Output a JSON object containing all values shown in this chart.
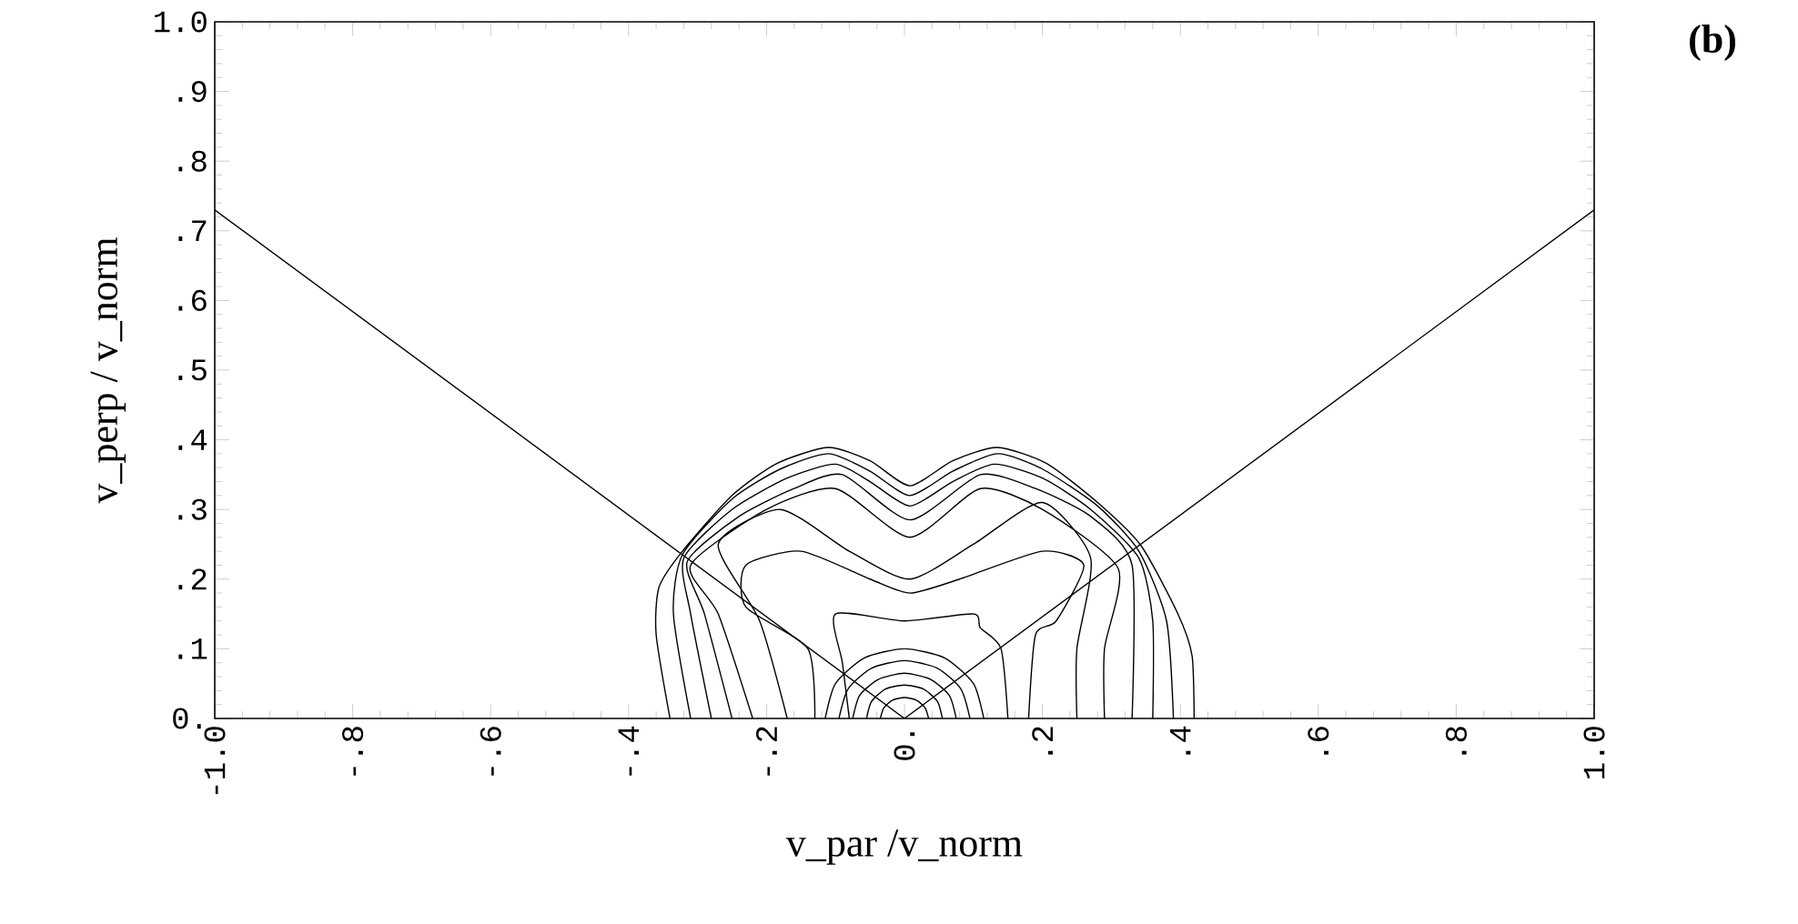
{
  "chart_data": {
    "type": "line",
    "xlabel": "v_par /v_norm",
    "ylabel": "v_perp / v_norm",
    "annotations": [
      "(b)"
    ],
    "xlim": [
      -1,
      1
    ],
    "ylim": [
      0,
      1
    ],
    "xticks": [
      {
        "value": -1,
        "label": "-1.0"
      },
      {
        "value": -0.8,
        "label": "-.8"
      },
      {
        "value": -0.6,
        "label": "-.6"
      },
      {
        "value": -0.4,
        "label": "-.4"
      },
      {
        "value": -0.2,
        "label": "-.2"
      },
      {
        "value": 0,
        "label": "0."
      },
      {
        "value": 0.2,
        "label": ".2"
      },
      {
        "value": 0.4,
        "label": ".4"
      },
      {
        "value": 0.6,
        "label": ".6"
      },
      {
        "value": 0.8,
        "label": ".8"
      },
      {
        "value": 1,
        "label": "1.0"
      }
    ],
    "yticks": [
      {
        "value": 0,
        "label": "0."
      },
      {
        "value": 0.1,
        "label": ".1"
      },
      {
        "value": 0.2,
        "label": ".2"
      },
      {
        "value": 0.3,
        "label": ".3"
      },
      {
        "value": 0.4,
        "label": ".4"
      },
      {
        "value": 0.5,
        "label": ".5"
      },
      {
        "value": 0.6,
        "label": ".6"
      },
      {
        "value": 0.7,
        "label": ".7"
      },
      {
        "value": 0.8,
        "label": ".8"
      },
      {
        "value": 0.9,
        "label": ".9"
      },
      {
        "value": 1,
        "label": "1.0"
      }
    ],
    "grid": false,
    "marker": "none",
    "line_style": "solid",
    "series": [
      {
        "color": "#000000",
        "x": [
          -1,
          0
        ],
        "values": [
          0.73,
          0
        ]
      },
      {
        "color": "#000000",
        "x": [
          0,
          1
        ],
        "values": [
          0,
          0.73
        ]
      },
      {
        "color": "#000000",
        "x": [
          -0.34,
          -0.36,
          -0.356,
          -0.322,
          -0.25,
          -0.185,
          -0.111,
          -0.05,
          0.008,
          0.07,
          0.135,
          0.206,
          0.28,
          0.343,
          0.396,
          0.417,
          0.42
        ],
        "values": [
          0,
          0.12,
          0.188,
          0.24,
          0.32,
          0.366,
          0.389,
          0.37,
          0.334,
          0.37,
          0.389,
          0.366,
          0.31,
          0.248,
          0.151,
          0.09,
          0
        ]
      },
      {
        "color": "#000000",
        "x": [
          -0.31,
          -0.335,
          -0.322,
          -0.25,
          -0.18,
          -0.11,
          -0.05,
          0.008,
          0.07,
          0.135,
          0.2,
          0.28,
          0.34,
          0.38,
          0.39
        ],
        "values": [
          0,
          0.15,
          0.235,
          0.315,
          0.358,
          0.38,
          0.355,
          0.32,
          0.355,
          0.38,
          0.358,
          0.305,
          0.24,
          0.14,
          0
        ]
      },
      {
        "color": "#000000",
        "x": [
          -0.28,
          -0.31,
          -0.32,
          -0.25,
          -0.17,
          -0.1,
          -0.05,
          0.008,
          0.07,
          0.13,
          0.2,
          0.27,
          0.34,
          0.36,
          0.36
        ],
        "values": [
          0,
          0.15,
          0.23,
          0.3,
          0.345,
          0.365,
          0.34,
          0.305,
          0.34,
          0.365,
          0.345,
          0.3,
          0.23,
          0.14,
          0
        ]
      },
      {
        "color": "#000000",
        "x": [
          -0.25,
          -0.29,
          -0.315,
          -0.24,
          -0.16,
          -0.09,
          0.008,
          0.11,
          0.19,
          0.27,
          0.33,
          0.33
        ],
        "values": [
          0,
          0.15,
          0.225,
          0.29,
          0.33,
          0.35,
          0.285,
          0.35,
          0.33,
          0.29,
          0.22,
          0
        ]
      },
      {
        "color": "#000000",
        "x": [
          -0.22,
          -0.27,
          -0.31,
          -0.2,
          -0.1,
          0.008,
          0.11,
          0.2,
          0.31,
          0.29,
          0.29
        ],
        "values": [
          0,
          0.15,
          0.22,
          0.3,
          0.33,
          0.26,
          0.33,
          0.3,
          0.215,
          0.1,
          0
        ]
      },
      {
        "color": "#000000",
        "x": [
          -0.17,
          -0.21,
          -0.27,
          -0.18,
          -0.08,
          0.008,
          0.1,
          0.2,
          0.27,
          0.25,
          0.25
        ],
        "values": [
          0,
          0.14,
          0.25,
          0.3,
          0.24,
          0.2,
          0.25,
          0.31,
          0.23,
          0.1,
          0
        ]
      },
      {
        "color": "#000000",
        "x": [
          -0.13,
          -0.14,
          -0.23,
          -0.23,
          -0.15,
          -0.05,
          0.008,
          0.08,
          0.2,
          0.26,
          0.22,
          0.19,
          0.18
        ],
        "values": [
          0,
          0.1,
          0.16,
          0.22,
          0.24,
          0.2,
          0.18,
          0.2,
          0.24,
          0.22,
          0.14,
          0.12,
          0
        ]
      },
      {
        "color": "#000000",
        "x": [
          -0.08,
          -0.09,
          -0.1,
          0.0,
          0.1,
          0.11,
          0.14,
          0.15
        ],
        "values": [
          0,
          0.08,
          0.15,
          0.14,
          0.15,
          0.13,
          0.1,
          0
        ]
      },
      {
        "color": "#000000",
        "x": [
          0.115,
          0.1,
          0.058,
          0,
          -0.058,
          -0.1,
          -0.115
        ],
        "values": [
          0,
          0.05,
          0.087,
          0.1,
          0.087,
          0.05,
          0
        ]
      },
      {
        "color": "#000000",
        "x": [
          0.095,
          0.082,
          0.048,
          0,
          -0.048,
          -0.082,
          -0.095
        ],
        "values": [
          0,
          0.042,
          0.072,
          0.083,
          0.072,
          0.042,
          0
        ]
      },
      {
        "color": "#000000",
        "x": [
          0.075,
          0.065,
          0.038,
          0,
          -0.038,
          -0.065,
          -0.075
        ],
        "values": [
          0,
          0.033,
          0.056,
          0.065,
          0.056,
          0.033,
          0
        ]
      },
      {
        "color": "#000000",
        "x": [
          0.055,
          0.048,
          0.028,
          0,
          -0.028,
          -0.048,
          -0.055
        ],
        "values": [
          0,
          0.024,
          0.042,
          0.048,
          0.042,
          0.024,
          0
        ]
      },
      {
        "color": "#000000",
        "x": [
          0.035,
          0.03,
          0.018,
          0,
          -0.018,
          -0.03,
          -0.035
        ],
        "values": [
          0,
          0.015,
          0.026,
          0.03,
          0.026,
          0.015,
          0
        ]
      }
    ]
  }
}
